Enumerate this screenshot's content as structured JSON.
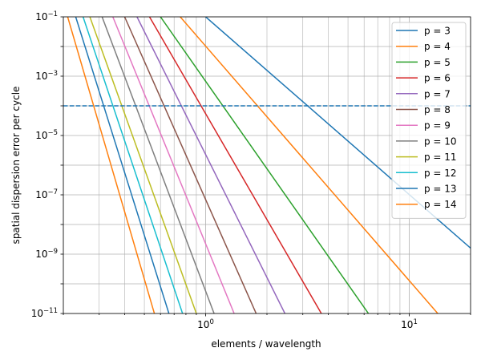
{
  "chart_data": {
    "type": "line",
    "title": "",
    "xlabel": "elements / wavelength",
    "ylabel": "spatial dispersion error per cycle",
    "x_scale": "log",
    "y_scale": "log",
    "xlim": [
      0.2,
      20
    ],
    "ylim": [
      1e-11,
      0.1
    ],
    "grid": true,
    "grid_x": "major and minor",
    "grid_y": "major",
    "legend_position": "top-right",
    "x_ticks": [
      {
        "value": 1,
        "base": "10",
        "exp": "0"
      },
      {
        "value": 10,
        "base": "10",
        "exp": "1"
      }
    ],
    "y_ticks": [
      {
        "value": 1e-11,
        "base": "10",
        "exp": "−11"
      },
      {
        "value": 1e-09,
        "base": "10",
        "exp": "−9"
      },
      {
        "value": 1e-07,
        "base": "10",
        "exp": "−7"
      },
      {
        "value": 1e-05,
        "base": "10",
        "exp": "−5"
      },
      {
        "value": 0.001,
        "base": "10",
        "exp": "−3"
      },
      {
        "value": 0.1,
        "base": "10",
        "exp": "−1"
      }
    ],
    "reference_line": {
      "y": 0.0001,
      "style": "dashed",
      "color": "#1f77b4"
    },
    "series": [
      {
        "name": "p = 3",
        "color": "#1f77b4",
        "points": [
          [
            1.0,
            0.1
          ],
          [
            20,
            1.6e-09
          ]
        ]
      },
      {
        "name": "p = 4",
        "color": "#ff7f0e",
        "points": [
          [
            0.75,
            0.1
          ],
          [
            13.8,
            1e-11
          ]
        ]
      },
      {
        "name": "p = 5",
        "color": "#2ca02c",
        "points": [
          [
            0.6,
            0.1
          ],
          [
            6.3,
            1e-11
          ]
        ]
      },
      {
        "name": "p = 6",
        "color": "#d62728",
        "points": [
          [
            0.53,
            0.1
          ],
          [
            3.7,
            1e-11
          ]
        ]
      },
      {
        "name": "p = 7",
        "color": "#9467bd",
        "points": [
          [
            0.46,
            0.1
          ],
          [
            2.45,
            1e-11
          ]
        ]
      },
      {
        "name": "p = 8",
        "color": "#8c564b",
        "points": [
          [
            0.4,
            0.1
          ],
          [
            1.77,
            1e-11
          ]
        ]
      },
      {
        "name": "p = 9",
        "color": "#e377c2",
        "points": [
          [
            0.35,
            0.1
          ],
          [
            1.38,
            1e-11
          ]
        ]
      },
      {
        "name": "p = 10",
        "color": "#7f7f7f",
        "points": [
          [
            0.31,
            0.1
          ],
          [
            1.1,
            1e-11
          ]
        ]
      },
      {
        "name": "p = 11",
        "color": "#bcbd22",
        "points": [
          [
            0.27,
            0.1
          ],
          [
            0.9,
            1e-11
          ]
        ]
      },
      {
        "name": "p = 12",
        "color": "#17becf",
        "points": [
          [
            0.25,
            0.1
          ],
          [
            0.77,
            1e-11
          ]
        ]
      },
      {
        "name": "p = 13",
        "color": "#1f77b4",
        "points": [
          [
            0.23,
            0.1
          ],
          [
            0.66,
            1e-11
          ]
        ]
      },
      {
        "name": "p = 14",
        "color": "#ff7f0e",
        "points": [
          [
            0.21,
            0.1
          ],
          [
            0.56,
            1e-11
          ]
        ]
      }
    ]
  }
}
